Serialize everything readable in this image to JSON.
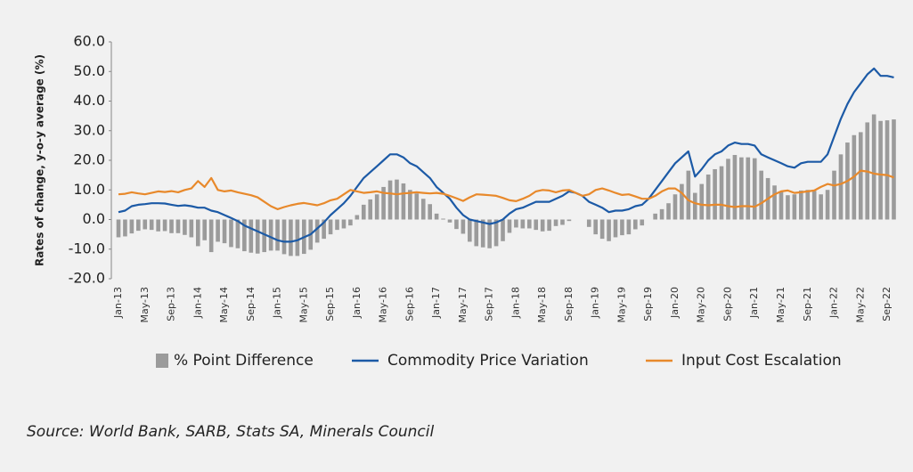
{
  "chart_data": {
    "type": "bar-line",
    "y_axis_label": "Rates of change, y-o-y average (%)",
    "source": "Source: World Bank, SARB, Stats SA, Minerals Council",
    "ylim": [
      -20,
      60
    ],
    "yticks": [
      {
        "value": -20,
        "label": "-20.0"
      },
      {
        "value": -10,
        "label": "-10.0"
      },
      {
        "value": 0,
        "label": "0.0"
      },
      {
        "value": 10,
        "label": "10.0"
      },
      {
        "value": 20,
        "label": "20.0"
      },
      {
        "value": 30,
        "label": "30.0"
      },
      {
        "value": 40,
        "label": "40.0"
      },
      {
        "value": 50,
        "label": "50.0"
      },
      {
        "value": 60,
        "label": "60.0"
      }
    ],
    "categories": [
      "Jan-13",
      null,
      null,
      null,
      "May-13",
      null,
      null,
      null,
      "Sep-13",
      null,
      null,
      null,
      "Jan-14",
      null,
      null,
      null,
      "May-14",
      null,
      null,
      null,
      "Sep-14",
      null,
      null,
      null,
      "Jan-15",
      null,
      null,
      null,
      "May-15",
      null,
      null,
      null,
      "Sep-15",
      null,
      null,
      null,
      "Jan-16",
      null,
      null,
      null,
      "May-16",
      null,
      null,
      null,
      "Sep-16",
      null,
      null,
      null,
      "Jan-17",
      null,
      null,
      null,
      "May-17",
      null,
      null,
      null,
      "Sep-17",
      null,
      null,
      null,
      "Jan-18",
      null,
      null,
      null,
      "May-18",
      null,
      null,
      null,
      "Sep-18",
      null,
      null,
      null,
      "Jan-19",
      null,
      null,
      null,
      "May-19",
      null,
      null,
      null,
      "Sep-19",
      null,
      null,
      null,
      "Jan-20",
      null,
      null,
      null,
      "May-20",
      null,
      null,
      null,
      "Sep-20",
      null,
      null,
      null,
      "Jan-21",
      null,
      null,
      null,
      "May-21",
      null,
      null,
      null,
      "Sep-21",
      null,
      null,
      null,
      "Jan-22",
      null,
      null,
      null,
      "May-22",
      null,
      null,
      null,
      "Sep-22",
      null
    ],
    "series": [
      {
        "name": "% Point Difference",
        "kind": "bar",
        "color": "#9b9b9b",
        "values": [
          -6,
          -5.7,
          -4.7,
          -3.8,
          -3.3,
          -3.5,
          -4,
          -3.9,
          -4.6,
          -4.6,
          -5.2,
          -6,
          -9,
          -7,
          -11,
          -7.5,
          -8,
          -9.3,
          -9.7,
          -10.7,
          -11.2,
          -11.5,
          -11,
          -10.5,
          -10.5,
          -11.7,
          -12.3,
          -12.3,
          -11.6,
          -10.2,
          -7.8,
          -6.5,
          -5,
          -3.5,
          -3,
          -2,
          1.5,
          5,
          6.8,
          8.5,
          11,
          13.2,
          13.5,
          12.2,
          10,
          8.8,
          7,
          5.2,
          2,
          0.3,
          -1,
          -3.2,
          -4.8,
          -7.5,
          -9,
          -9.4,
          -9.7,
          -9,
          -7.3,
          -4.5,
          -2.7,
          -3,
          -3,
          -3.5,
          -4,
          -3.8,
          -2.2,
          -1.8,
          -0.5,
          0,
          0,
          -2.5,
          -5,
          -6.5,
          -7.3,
          -6,
          -5.3,
          -5,
          -3.3,
          -2,
          0,
          2,
          3.5,
          5.5,
          8.5,
          12,
          16.5,
          9,
          12,
          15.2,
          17,
          18,
          20.5,
          21.8,
          21,
          21,
          20.7,
          16.5,
          14,
          11.5,
          9.5,
          8.2,
          8.5,
          9.8,
          10,
          9.7,
          8.5,
          10,
          16.5,
          22,
          26,
          28.5,
          29.5,
          32.8,
          35.5,
          33.3,
          33.5,
          33.8
        ]
      },
      {
        "name": "Commodity Price Variation",
        "kind": "line",
        "color": "#1c5aa6",
        "values": [
          2.5,
          3,
          4.5,
          5,
          5.2,
          5.5,
          5.5,
          5.4,
          5,
          4.6,
          4.8,
          4.5,
          4,
          4,
          3,
          2.5,
          1.5,
          0.5,
          -0.5,
          -2,
          -3,
          -4,
          -5,
          -6,
          -7,
          -7.5,
          -7.5,
          -7,
          -6,
          -5,
          -3,
          -1,
          1.5,
          3.5,
          5.5,
          8,
          11,
          14,
          16,
          18,
          20,
          22,
          22,
          21,
          19,
          18,
          16,
          14,
          11,
          9,
          7,
          4,
          1.5,
          0,
          -0.5,
          -1,
          -1.5,
          -1,
          0,
          2,
          3.5,
          4,
          5,
          6,
          6,
          6,
          7,
          8,
          9.5,
          9,
          8,
          6,
          5,
          4,
          2.5,
          3,
          3,
          3.5,
          4.5,
          5,
          7,
          10,
          13,
          16,
          19,
          21,
          23,
          14.5,
          17,
          20,
          22,
          23,
          25,
          26,
          25.5,
          25.5,
          25,
          22,
          21,
          20,
          19,
          18,
          17.5,
          19,
          19.5,
          19.5,
          19.5,
          22,
          28,
          34,
          39,
          43,
          46,
          49,
          51,
          48.5,
          48.5,
          48
        ]
      },
      {
        "name": "Input Cost Escalation",
        "kind": "line",
        "color": "#e8892b",
        "values": [
          8.5,
          8.7,
          9.2,
          8.8,
          8.5,
          9,
          9.5,
          9.3,
          9.6,
          9.2,
          10,
          10.5,
          13,
          11,
          14,
          10,
          9.5,
          9.8,
          9.2,
          8.7,
          8.2,
          7.5,
          6,
          4.5,
          3.5,
          4.2,
          4.8,
          5.3,
          5.6,
          5.2,
          4.8,
          5.5,
          6.5,
          7,
          8.5,
          10,
          9.5,
          9,
          9.2,
          9.5,
          9,
          8.8,
          8.5,
          8.8,
          9,
          9.2,
          9,
          8.8,
          9,
          8.7,
          8,
          7.2,
          6.3,
          7.5,
          8.5,
          8.4,
          8.2,
          8,
          7.3,
          6.5,
          6.2,
          7,
          8,
          9.5,
          10,
          9.8,
          9.2,
          9.8,
          10,
          9,
          8,
          8.5,
          10,
          10.5,
          9.8,
          9,
          8.3,
          8.5,
          7.8,
          7,
          7,
          8,
          9.5,
          10.5,
          10.5,
          9,
          6.5,
          5.5,
          5,
          4.8,
          5,
          5,
          4.5,
          4.2,
          4.5,
          4.5,
          4.3,
          5.5,
          7,
          8.5,
          9.5,
          9.8,
          9,
          9.2,
          9.5,
          9.8,
          11,
          12,
          11.5,
          12,
          13,
          14.5,
          16.5,
          16.2,
          15.5,
          15.2,
          15,
          14.2
        ]
      }
    ]
  }
}
